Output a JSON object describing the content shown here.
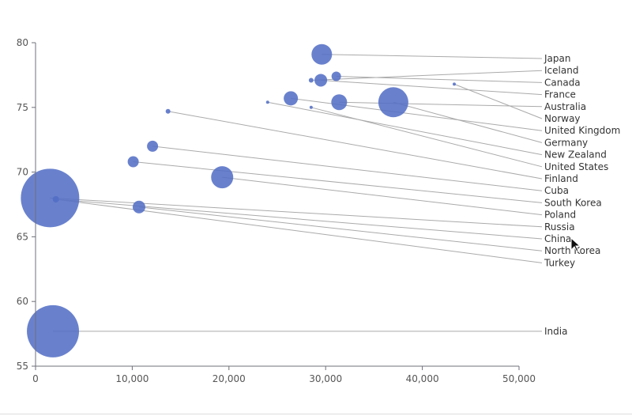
{
  "chart_data": {
    "type": "scatter",
    "title": "",
    "xlabel": "",
    "ylabel": "",
    "xlim": [
      0,
      50000
    ],
    "ylim": [
      55,
      80
    ],
    "x_ticks": [
      0,
      10000,
      20000,
      30000,
      40000,
      50000
    ],
    "x_tick_labels": [
      "0",
      "10,000",
      "20,000",
      "30,000",
      "40,000",
      "50,000"
    ],
    "y_ticks": [
      55,
      60,
      65,
      70,
      75,
      80
    ],
    "y_tick_labels": [
      "55",
      "60",
      "65",
      "70",
      "75",
      "80"
    ],
    "grid": false,
    "point_color": "#5470c6",
    "leader_color": "#aaaaaa",
    "points": [
      {
        "label": "Japan",
        "x": 29600,
        "y": 79.1,
        "size": 13
      },
      {
        "label": "Iceland",
        "x": 28500,
        "y": 77.1,
        "size": 3
      },
      {
        "label": "Canada",
        "x": 31100,
        "y": 77.4,
        "size": 6
      },
      {
        "label": "France",
        "x": 29500,
        "y": 77.1,
        "size": 8
      },
      {
        "label": "Australia",
        "x": 31400,
        "y": 75.4,
        "size": 10
      },
      {
        "label": "Norway",
        "x": 43300,
        "y": 76.8,
        "size": 2
      },
      {
        "label": "United Kingdom",
        "x": 26400,
        "y": 75.7,
        "size": 9
      },
      {
        "label": "Germany",
        "x": 37000,
        "y": 75.4,
        "size": 19
      },
      {
        "label": "New Zealand",
        "x": 24000,
        "y": 75.4,
        "size": 2
      },
      {
        "label": "United States",
        "x": 28500,
        "y": 75.0,
        "size": 2
      },
      {
        "label": "Finland",
        "x": 13700,
        "y": 74.7,
        "size": 3
      },
      {
        "label": "Cuba",
        "x": 12100,
        "y": 72.0,
        "size": 7
      },
      {
        "label": "South Korea",
        "x": 10100,
        "y": 70.8,
        "size": 7
      },
      {
        "label": "Poland",
        "x": 19300,
        "y": 69.6,
        "size": 14
      },
      {
        "label": "Russia",
        "x": 1500,
        "y": 68.0,
        "size": 37
      },
      {
        "label": "China",
        "x": 2100,
        "y": 67.9,
        "size": 4
      },
      {
        "label": "North Korea",
        "x": 10700,
        "y": 67.3,
        "size": 8
      },
      {
        "label": "Turkey",
        "x": 2100,
        "y": 67.9,
        "size": 4
      },
      {
        "label": "India",
        "x": 1800,
        "y": 57.7,
        "size": 33
      }
    ]
  }
}
